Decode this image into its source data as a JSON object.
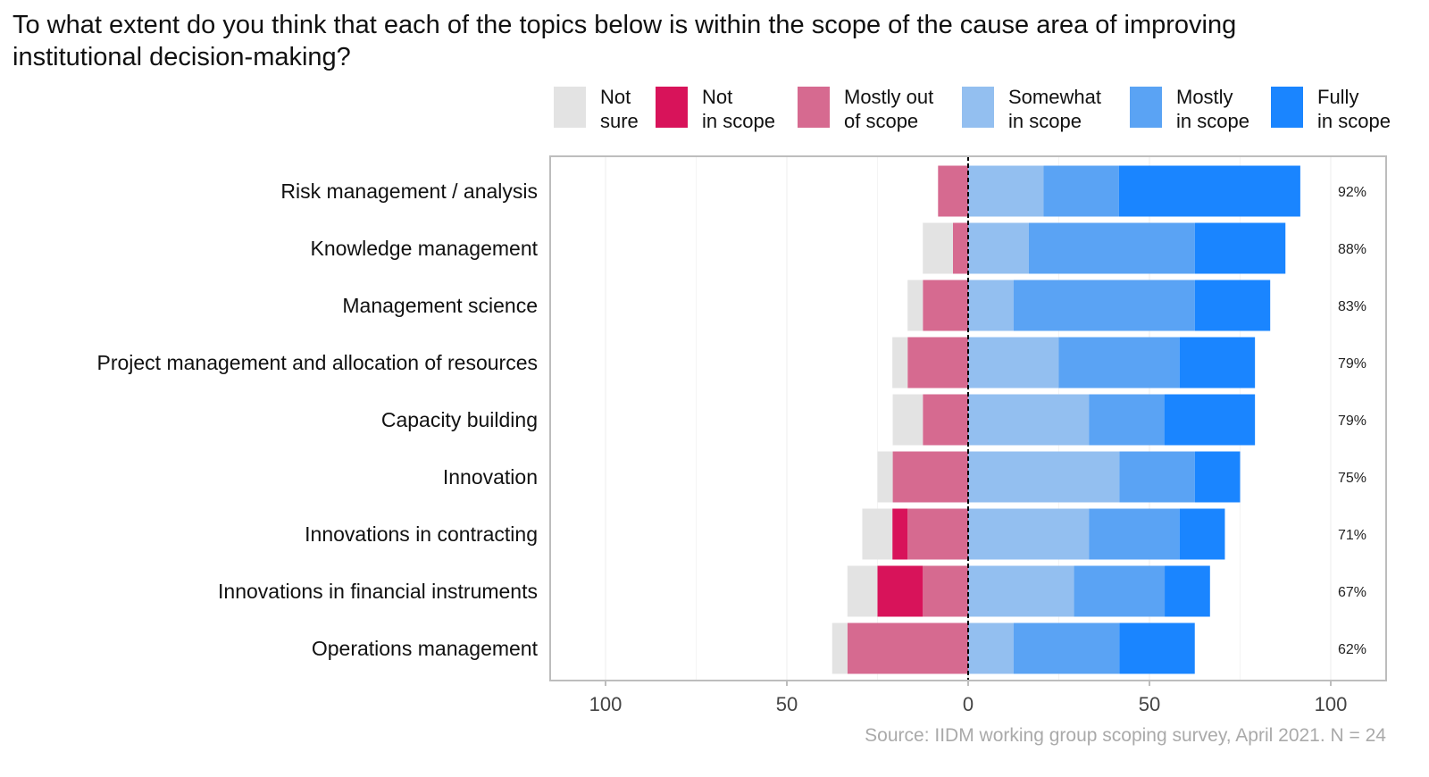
{
  "title": "To what extent do you think that each of the topics below is within the scope of the cause area of improving institutional decision-making?",
  "source": "Source: IIDM working group scoping survey, April 2021. N = 24",
  "chart_data": {
    "type": "bar",
    "subtype": "diverging-stacked-horizontal",
    "title": "To what extent do you think that each of the topics below is within the scope of the cause area of improving institutional decision-making?",
    "xlabel": "",
    "ylabel": "",
    "xlim": [
      -100,
      100
    ],
    "xticks": [
      -100,
      -50,
      0,
      50,
      100
    ],
    "xtick_labels": [
      "100",
      "50",
      "0",
      "50",
      "100"
    ],
    "legend_position": "top-right",
    "categories": [
      "Risk management / analysis",
      "Knowledge management",
      "Management science",
      "Project management and allocation of resources",
      "Capacity building",
      "Innovation",
      "Innovations in contracting",
      "Innovations in financial instruments",
      "Operations management"
    ],
    "series": [
      {
        "name": "Not sure",
        "legend": "Not\nsure",
        "color": "#e3e3e3",
        "side": "negative",
        "values": [
          0,
          8.3,
          4.2,
          4.2,
          8.3,
          4.2,
          8.3,
          8.3,
          4.2
        ]
      },
      {
        "name": "Not in scope",
        "legend": "Not\nin scope",
        "color": "#d8135a",
        "side": "negative",
        "values": [
          0,
          0,
          0,
          0,
          0,
          0,
          4.2,
          12.5,
          0
        ]
      },
      {
        "name": "Mostly out of scope",
        "legend": "Mostly out\nof scope",
        "color": "#d66a90",
        "side": "negative",
        "values": [
          8.3,
          4.2,
          12.5,
          16.7,
          12.5,
          20.8,
          16.7,
          12.5,
          33.3
        ]
      },
      {
        "name": "Somewhat in scope",
        "legend": "Somewhat\nin scope",
        "color": "#93bff0",
        "side": "positive",
        "values": [
          20.8,
          16.7,
          12.5,
          25.0,
          33.3,
          41.7,
          33.3,
          29.2,
          12.5
        ]
      },
      {
        "name": "Mostly in scope",
        "legend": "Mostly\nin scope",
        "color": "#5aa3f4",
        "side": "positive",
        "values": [
          20.8,
          45.8,
          50.0,
          33.3,
          20.8,
          20.8,
          25.0,
          25.0,
          29.2
        ]
      },
      {
        "name": "Fully in scope",
        "legend": "Fully\nin scope",
        "color": "#1a85ff",
        "side": "positive",
        "values": [
          50.0,
          25.0,
          20.8,
          20.8,
          25.0,
          12.5,
          12.5,
          12.5,
          20.8
        ]
      }
    ],
    "in_scope_labels": [
      "92%",
      "88%",
      "83%",
      "79%",
      "79%",
      "75%",
      "71%",
      "67%",
      "62%"
    ]
  }
}
